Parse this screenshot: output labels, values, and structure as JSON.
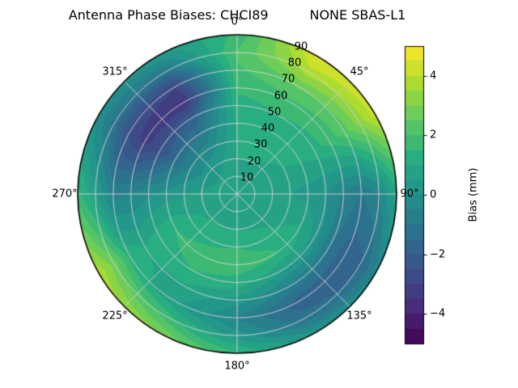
{
  "title": "Antenna Phase Biases: CHCI89          NONE SBAS-L1",
  "chart_data": {
    "type": "heatmap",
    "projection": "polar",
    "title": "Antenna Phase Biases: CHCI89          NONE SBAS-L1",
    "colormap": "viridis",
    "level_step": 0.5,
    "radial_max": 90,
    "radial_label_angle_deg": 22.5,
    "angular_ticks": [
      {
        "deg": 0,
        "label": "0°"
      },
      {
        "deg": 45,
        "label": "45°"
      },
      {
        "deg": 90,
        "label": "90°"
      },
      {
        "deg": 135,
        "label": "135°"
      },
      {
        "deg": 180,
        "label": "180°"
      },
      {
        "deg": 225,
        "label": "225°"
      },
      {
        "deg": 270,
        "label": "270°"
      },
      {
        "deg": 315,
        "label": "315°"
      }
    ],
    "radial_ticks": [
      10,
      20,
      30,
      40,
      50,
      60,
      70,
      80,
      90
    ],
    "colorbar": {
      "label": "Bias (mm)",
      "min": -5,
      "max": 5,
      "ticks": [
        {
          "v": -4,
          "label": "−4"
        },
        {
          "v": -2,
          "label": "−2"
        },
        {
          "v": 0,
          "label": "0"
        },
        {
          "v": 2,
          "label": "2"
        },
        {
          "v": 4,
          "label": "4"
        }
      ]
    },
    "colormap_stops": [
      [
        0.0,
        "#440154"
      ],
      [
        0.125,
        "#472d7b"
      ],
      [
        0.25,
        "#3b528b"
      ],
      [
        0.375,
        "#2c728e"
      ],
      [
        0.5,
        "#21918c"
      ],
      [
        0.625,
        "#28ae80"
      ],
      [
        0.75,
        "#5ec962"
      ],
      [
        0.875,
        "#addc30"
      ],
      [
        1.0,
        "#fde725"
      ]
    ],
    "grid": {
      "azimuth_deg": [
        0,
        30,
        60,
        90,
        120,
        150,
        180,
        210,
        240,
        270,
        300,
        330,
        360
      ],
      "radius": [
        0,
        10,
        20,
        30,
        40,
        50,
        60,
        70,
        80,
        90
      ],
      "values": [
        [
          0.8,
          0.9,
          1.0,
          1.0,
          1.1,
          1.3,
          1.6,
          1.9,
          2.1,
          1.6
        ],
        [
          0.8,
          0.9,
          1.0,
          1.1,
          1.2,
          1.5,
          1.9,
          2.6,
          3.8,
          4.6
        ],
        [
          0.8,
          0.8,
          0.9,
          1.0,
          1.1,
          1.3,
          1.7,
          2.3,
          3.2,
          4.2
        ],
        [
          0.8,
          0.7,
          0.6,
          0.5,
          0.3,
          0.0,
          -0.6,
          -1.0,
          -0.5,
          0.8
        ],
        [
          0.8,
          0.7,
          0.7,
          0.9,
          1.1,
          0.3,
          -1.0,
          -1.9,
          -1.6,
          -0.4
        ],
        [
          0.8,
          0.8,
          0.9,
          1.3,
          1.6,
          0.6,
          -0.7,
          -1.8,
          -1.3,
          0.2
        ],
        [
          0.8,
          0.8,
          1.0,
          1.5,
          1.8,
          1.3,
          0.3,
          -0.6,
          0.3,
          1.6
        ],
        [
          0.8,
          0.8,
          1.0,
          1.4,
          1.7,
          1.5,
          0.9,
          0.6,
          1.8,
          3.0
        ],
        [
          0.8,
          0.8,
          0.9,
          1.2,
          1.5,
          1.3,
          1.0,
          1.4,
          2.8,
          3.9
        ],
        [
          0.8,
          0.7,
          0.6,
          0.4,
          0.2,
          -0.1,
          -0.5,
          -0.7,
          0.6,
          1.7
        ],
        [
          0.8,
          0.6,
          0.2,
          -0.5,
          -1.5,
          -2.6,
          -3.2,
          -2.6,
          -1.2,
          -0.1
        ],
        [
          0.8,
          0.7,
          0.4,
          -0.2,
          -1.0,
          -2.0,
          -3.6,
          -2.9,
          -1.0,
          0.4
        ],
        [
          0.8,
          0.9,
          1.0,
          1.0,
          1.1,
          1.3,
          1.6,
          1.9,
          2.1,
          1.6
        ]
      ]
    }
  }
}
